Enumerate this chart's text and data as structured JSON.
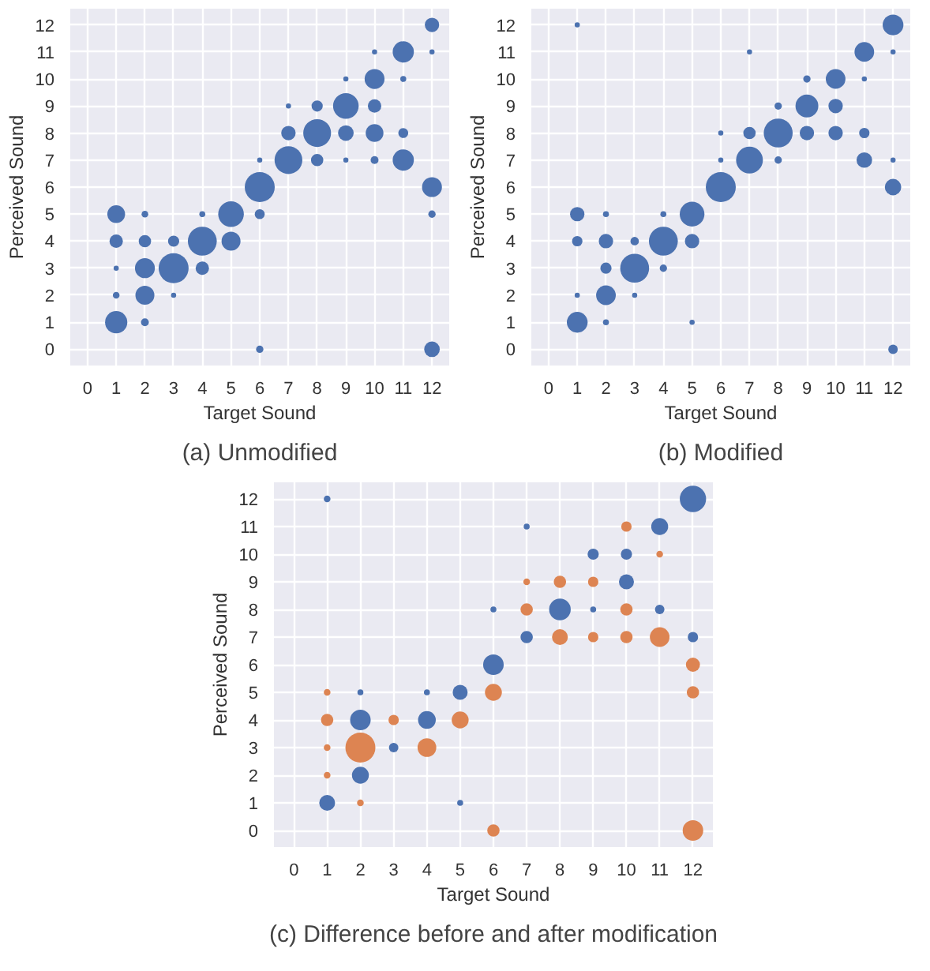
{
  "chart_data": [
    {
      "type": "bubble",
      "title": "(a) Unmodified",
      "xlabel": "Target Sound",
      "ylabel": "Perceived Sound",
      "xlim": [
        -0.6,
        12.6
      ],
      "ylim": [
        -0.6,
        12.6
      ],
      "xticks": [
        0,
        1,
        2,
        3,
        4,
        5,
        6,
        7,
        8,
        9,
        10,
        11,
        12
      ],
      "yticks": [
        0,
        1,
        2,
        3,
        4,
        5,
        6,
        7,
        8,
        9,
        10,
        11,
        12
      ],
      "grid": true,
      "marker": "circle",
      "series": [
        {
          "color": "#4c72b0",
          "x": [
            1,
            1,
            1,
            1,
            1,
            2,
            2,
            2,
            2,
            2,
            3,
            3,
            3,
            4,
            4,
            4,
            5,
            5,
            6,
            6,
            6,
            6,
            7,
            7,
            7,
            8,
            8,
            8,
            9,
            9,
            9,
            9,
            10,
            10,
            10,
            10,
            10,
            11,
            11,
            11,
            11,
            12,
            12,
            12,
            12,
            12
          ],
          "values": [
            1,
            2,
            3,
            4,
            5,
            1,
            2,
            3,
            4,
            5,
            2,
            3,
            4,
            3,
            4,
            5,
            4,
            5,
            0,
            5,
            6,
            7,
            7,
            8,
            9,
            7,
            8,
            9,
            7,
            8,
            9,
            10,
            7,
            8,
            9,
            10,
            11,
            7,
            8,
            10,
            11,
            0,
            5,
            6,
            11,
            12
          ],
          "sizes": [
            0.55,
            0.05,
            0.03,
            0.2,
            0.35,
            0.07,
            0.4,
            0.44,
            0.17,
            0.05,
            0.03,
            1,
            0.14,
            0.2,
            0.93,
            0.04,
            0.4,
            0.73,
            0.06,
            0.11,
            1,
            0.03,
            0.86,
            0.23,
            0.03,
            0.17,
            0.86,
            0.14,
            0.03,
            0.27,
            0.73,
            0.03,
            0.07,
            0.35,
            0.2,
            0.44,
            0.03,
            0.5,
            0.11,
            0.04,
            0.5,
            0.27,
            0.06,
            0.44,
            0.03,
            0.23
          ]
        }
      ]
    },
    {
      "type": "bubble",
      "title": "(b) Modified",
      "xlabel": "Target Sound",
      "ylabel": "Perceived Sound",
      "xlim": [
        -0.6,
        12.6
      ],
      "ylim": [
        -0.6,
        12.6
      ],
      "xticks": [
        0,
        1,
        2,
        3,
        4,
        5,
        6,
        7,
        8,
        9,
        10,
        11,
        12
      ],
      "yticks": [
        0,
        1,
        2,
        3,
        4,
        5,
        6,
        7,
        8,
        9,
        10,
        11,
        12
      ],
      "grid": true,
      "marker": "circle",
      "series": [
        {
          "color": "#4c72b0",
          "x": [
            1,
            1,
            1,
            1,
            1,
            2,
            2,
            2,
            2,
            2,
            3,
            3,
            3,
            4,
            4,
            4,
            5,
            5,
            5,
            6,
            6,
            6,
            7,
            7,
            7,
            8,
            8,
            8,
            9,
            9,
            9,
            10,
            10,
            10,
            11,
            11,
            11,
            11,
            12,
            12,
            12,
            12,
            12
          ],
          "values": [
            1,
            2,
            4,
            5,
            12,
            1,
            2,
            3,
            4,
            5,
            2,
            3,
            4,
            3,
            4,
            5,
            1,
            4,
            5,
            6,
            7,
            8,
            7,
            8,
            11,
            7,
            8,
            9,
            8,
            9,
            10,
            8,
            9,
            10,
            7,
            8,
            10,
            11,
            0,
            6,
            7,
            11,
            12
          ],
          "sizes": [
            0.48,
            0.03,
            0.12,
            0.23,
            0.03,
            0.04,
            0.43,
            0.14,
            0.23,
            0.04,
            0.03,
            0.93,
            0.08,
            0.06,
            0.93,
            0.04,
            0.03,
            0.23,
            0.68,
            1,
            0.03,
            0.03,
            0.8,
            0.17,
            0.03,
            0.06,
            0.93,
            0.06,
            0.23,
            0.58,
            0.06,
            0.23,
            0.23,
            0.43,
            0.27,
            0.12,
            0.03,
            0.43,
            0.1,
            0.3,
            0.03,
            0.03,
            0.48
          ]
        }
      ]
    },
    {
      "type": "bubble",
      "title": "(c) Difference before and after modification",
      "xlabel": "Target Sound",
      "ylabel": "Perceived Sound",
      "xlim": [
        -0.6,
        12.6
      ],
      "ylim": [
        -0.6,
        12.6
      ],
      "xticks": [
        0,
        1,
        2,
        3,
        4,
        5,
        6,
        7,
        8,
        9,
        10,
        11,
        12
      ],
      "yticks": [
        0,
        1,
        2,
        3,
        4,
        5,
        6,
        7,
        8,
        9,
        10,
        11,
        12
      ],
      "grid": true,
      "marker": "circle",
      "series": [
        {
          "color": "#4c72b0",
          "x": [
            1,
            1,
            2,
            2,
            2,
            3,
            4,
            4,
            5,
            5,
            6,
            6,
            7,
            7,
            8,
            9,
            9,
            10,
            10,
            11,
            11,
            12,
            12
          ],
          "values": [
            1,
            12,
            2,
            4,
            5,
            3,
            4,
            5,
            1,
            5,
            6,
            8,
            7,
            11,
            8,
            8,
            10,
            9,
            10,
            8,
            11,
            7,
            12
          ],
          "sizes": [
            0.28,
            0.05,
            0.32,
            0.47,
            0.04,
            0.1,
            0.35,
            0.04,
            0.04,
            0.25,
            0.47,
            0.04,
            0.17,
            0.04,
            0.52,
            0.04,
            0.14,
            0.25,
            0.14,
            0.1,
            0.32,
            0.12,
            0.77
          ]
        },
        {
          "color": "#dd8452",
          "x": [
            1,
            1,
            1,
            1,
            2,
            2,
            3,
            4,
            5,
            6,
            6,
            7,
            7,
            8,
            8,
            9,
            9,
            10,
            10,
            10,
            11,
            11,
            12,
            12,
            12
          ],
          "values": [
            2,
            3,
            4,
            5,
            1,
            3,
            4,
            3,
            4,
            0,
            5,
            8,
            9,
            7,
            9,
            7,
            9,
            7,
            8,
            11,
            7,
            10,
            0,
            5,
            6
          ],
          "sizes": [
            0.05,
            0.05,
            0.17,
            0.05,
            0.05,
            1,
            0.12,
            0.39,
            0.32,
            0.17,
            0.32,
            0.17,
            0.05,
            0.28,
            0.17,
            0.12,
            0.12,
            0.17,
            0.17,
            0.12,
            0.43,
            0.05,
            0.47,
            0.17,
            0.22
          ]
        }
      ]
    }
  ]
}
